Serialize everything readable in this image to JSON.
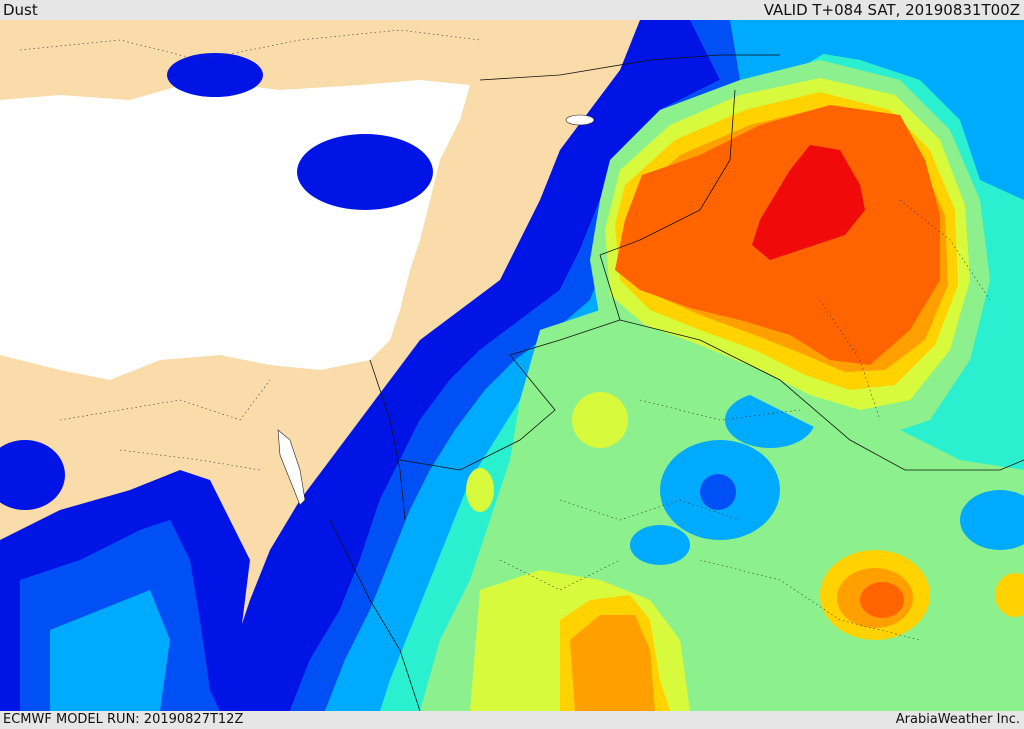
{
  "header": {
    "field": "Dust",
    "valid": "VALID T+084 SAT, 20190831T00Z"
  },
  "footer": {
    "model_run": "ECMWF MODEL RUN: 20190827T12Z",
    "credit": "ArabiaWeather Inc."
  },
  "legend_colors": {
    "land": "#fadcaa",
    "sea": "#ffffff",
    "level1": "#0014e6",
    "level2": "#0050f5",
    "level3": "#00aaff",
    "level4": "#2bf0d0",
    "level5": "#8cf08c",
    "level6": "#d8fa3c",
    "level7": "#ffd200",
    "level8": "#ffa000",
    "level9": "#ff6400",
    "level10": "#f00a0a"
  }
}
